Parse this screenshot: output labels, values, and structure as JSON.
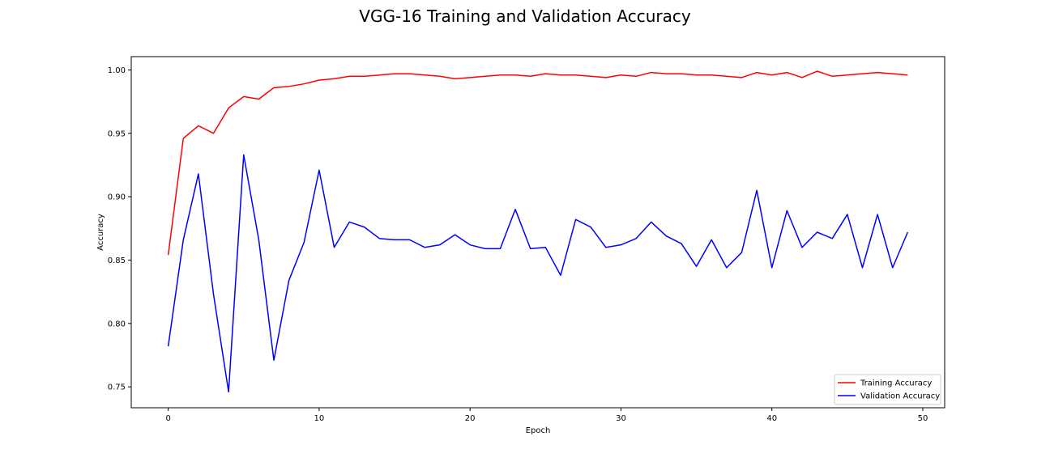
{
  "chart_data": {
    "type": "line",
    "title": "VGG-16 Training and Validation Accuracy",
    "xlabel": "Epoch",
    "ylabel": "Accuracy",
    "xlim": [
      -2.45,
      51.45
    ],
    "ylim": [
      0.7335,
      1.0105
    ],
    "xticks": [
      0,
      10,
      20,
      30,
      40,
      50
    ],
    "yticks": [
      0.75,
      0.8,
      0.85,
      0.9,
      0.95,
      1.0
    ],
    "grid": false,
    "legend_position": "lower-right",
    "x": [
      0,
      1,
      2,
      3,
      4,
      5,
      6,
      7,
      8,
      9,
      10,
      11,
      12,
      13,
      14,
      15,
      16,
      17,
      18,
      19,
      20,
      21,
      22,
      23,
      24,
      25,
      26,
      27,
      28,
      29,
      30,
      31,
      32,
      33,
      34,
      35,
      36,
      37,
      38,
      39,
      40,
      41,
      42,
      43,
      44,
      45,
      46,
      47,
      48,
      49
    ],
    "series": [
      {
        "name": "Training Accuracy",
        "color": "#ff0000",
        "values": [
          0.854,
          0.946,
          0.956,
          0.95,
          0.97,
          0.979,
          0.977,
          0.986,
          0.987,
          0.989,
          0.992,
          0.993,
          0.995,
          0.995,
          0.996,
          0.997,
          0.997,
          0.996,
          0.995,
          0.993,
          0.994,
          0.995,
          0.996,
          0.996,
          0.995,
          0.997,
          0.996,
          0.996,
          0.995,
          0.994,
          0.996,
          0.995,
          0.998,
          0.997,
          0.997,
          0.996,
          0.996,
          0.995,
          0.994,
          0.998,
          0.996,
          0.998,
          0.994,
          0.999,
          0.995,
          0.996,
          0.997,
          0.998,
          0.997,
          0.996
        ]
      },
      {
        "name": "Validation Accuracy",
        "color": "#0000ff",
        "values": [
          0.782,
          0.866,
          0.918,
          0.823,
          0.746,
          0.933,
          0.866,
          0.771,
          0.834,
          0.864,
          0.921,
          0.86,
          0.88,
          0.876,
          0.867,
          0.866,
          0.866,
          0.86,
          0.862,
          0.87,
          0.862,
          0.859,
          0.859,
          0.89,
          0.859,
          0.86,
          0.838,
          0.882,
          0.876,
          0.86,
          0.862,
          0.867,
          0.88,
          0.869,
          0.863,
          0.845,
          0.866,
          0.844,
          0.856,
          0.905,
          0.844,
          0.889,
          0.86,
          0.872,
          0.867,
          0.886,
          0.844,
          0.886,
          0.844,
          0.872
        ]
      }
    ],
    "ytick_labels": [
      "0.75",
      "0.80",
      "0.85",
      "0.90",
      "0.95",
      "1.00"
    ],
    "xtick_labels": [
      "0",
      "10",
      "20",
      "30",
      "40",
      "50"
    ]
  }
}
